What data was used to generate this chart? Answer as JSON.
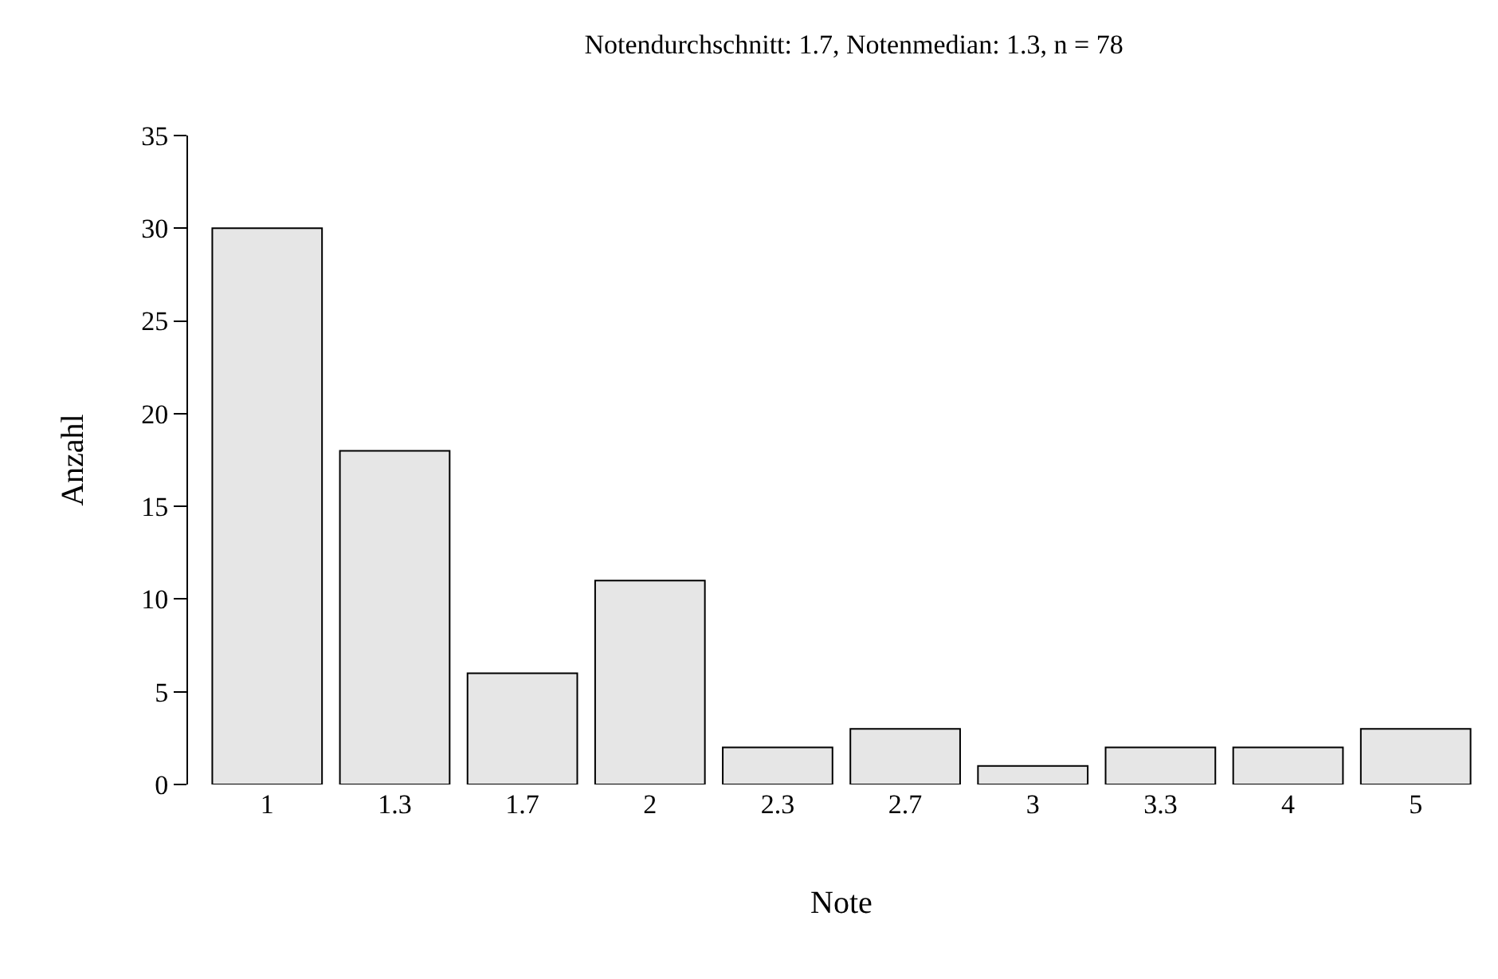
{
  "chart_data": {
    "type": "bar",
    "title": "Notendurchschnitt: 1.7, Notenmedian: 1.3, n = 78",
    "xlabel": "Note",
    "ylabel": "Anzahl",
    "categories": [
      "1",
      "1.3",
      "1.7",
      "2",
      "2.3",
      "2.7",
      "3",
      "3.3",
      "4",
      "5"
    ],
    "values": [
      30,
      18,
      6,
      11,
      2,
      3,
      1,
      2,
      2,
      3
    ],
    "color": "#e6e6e6",
    "ylim": [
      0,
      35
    ],
    "yticks": [
      0,
      5,
      10,
      15,
      20,
      25,
      30,
      35
    ]
  }
}
